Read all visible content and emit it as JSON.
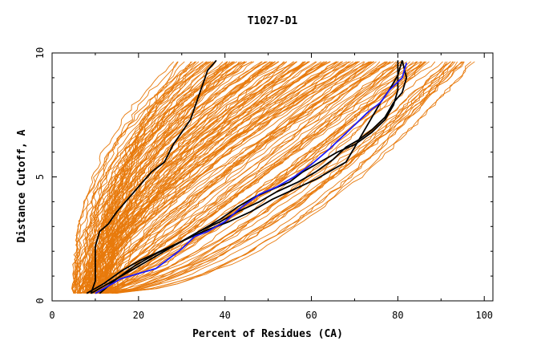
{
  "chart_data": {
    "type": "line",
    "title": "T1027-D1",
    "xlabel": "Percent of Residues (CA)",
    "ylabel": "Distance Cutoff, A",
    "xlim": [
      0,
      102
    ],
    "ylim": [
      0,
      10
    ],
    "x_ticks": [
      "0",
      "20",
      "40",
      "60",
      "80",
      "100"
    ],
    "y_ticks": [
      "0",
      "5",
      "10"
    ],
    "grid": false,
    "legend": "none",
    "colors": {
      "bundle": "#e87a0c",
      "highlight_black": "#000000",
      "highlight_blue": "#1a1aff"
    },
    "bundle_note": "about 160 orange model curves spanning x from 5 to 98 percent",
    "series": [
      {
        "color": "#000000",
        "points": [
          [
            9,
            0.3
          ],
          [
            10,
            0.8
          ],
          [
            10,
            1.5
          ],
          [
            10,
            2.2
          ],
          [
            11,
            2.8
          ],
          [
            13,
            3.1
          ],
          [
            15,
            3.6
          ],
          [
            17,
            4.0
          ],
          [
            19,
            4.4
          ],
          [
            21,
            4.8
          ],
          [
            23,
            5.2
          ],
          [
            26,
            5.6
          ],
          [
            28,
            6.3
          ],
          [
            30,
            6.8
          ],
          [
            32,
            7.3
          ],
          [
            33,
            7.8
          ],
          [
            34,
            8.3
          ],
          [
            35,
            8.8
          ],
          [
            36,
            9.3
          ],
          [
            38,
            9.7
          ]
        ]
      },
      {
        "color": "#000000",
        "points": [
          [
            8,
            0.3
          ],
          [
            12,
            0.7
          ],
          [
            16,
            1.2
          ],
          [
            20,
            1.6
          ],
          [
            25,
            2.0
          ],
          [
            30,
            2.4
          ],
          [
            35,
            2.8
          ],
          [
            41,
            3.2
          ],
          [
            46,
            3.6
          ],
          [
            51,
            4.1
          ],
          [
            56,
            4.5
          ],
          [
            61,
            4.9
          ],
          [
            65,
            5.3
          ],
          [
            68,
            5.6
          ],
          [
            70,
            6.2
          ],
          [
            72,
            6.8
          ],
          [
            74,
            7.4
          ],
          [
            76,
            8.0
          ],
          [
            78,
            8.5
          ],
          [
            80,
            9.1
          ],
          [
            81,
            9.7
          ]
        ]
      },
      {
        "color": "#000000",
        "points": [
          [
            9,
            0.3
          ],
          [
            14,
            0.8
          ],
          [
            19,
            1.3
          ],
          [
            24,
            1.8
          ],
          [
            29,
            2.3
          ],
          [
            34,
            2.8
          ],
          [
            39,
            3.2
          ],
          [
            43,
            3.6
          ],
          [
            48,
            4.0
          ],
          [
            52,
            4.4
          ],
          [
            57,
            4.8
          ],
          [
            61,
            5.2
          ],
          [
            65,
            5.7
          ],
          [
            68,
            6.2
          ],
          [
            71,
            6.5
          ],
          [
            74,
            6.9
          ],
          [
            77,
            7.4
          ],
          [
            79,
            8.0
          ],
          [
            81,
            8.4
          ],
          [
            82,
            9.0
          ],
          [
            81,
            9.7
          ]
        ]
      },
      {
        "color": "#000000",
        "points": [
          [
            11,
            0.3
          ],
          [
            15,
            0.9
          ],
          [
            19,
            1.4
          ],
          [
            24,
            1.9
          ],
          [
            29,
            2.3
          ],
          [
            34,
            2.8
          ],
          [
            39,
            3.3
          ],
          [
            43,
            3.8
          ],
          [
            47,
            4.2
          ],
          [
            51,
            4.5
          ],
          [
            55,
            4.8
          ],
          [
            58,
            5.2
          ],
          [
            62,
            5.6
          ],
          [
            66,
            6.0
          ],
          [
            70,
            6.3
          ],
          [
            74,
            6.8
          ],
          [
            77,
            7.3
          ],
          [
            79,
            7.9
          ],
          [
            80,
            8.5
          ],
          [
            80,
            9.1
          ],
          [
            80,
            9.7
          ]
        ]
      },
      {
        "color": "#1a1aff",
        "points": [
          [
            10,
            0.3
          ],
          [
            13,
            0.6
          ],
          [
            16,
            0.9
          ],
          [
            20,
            1.1
          ],
          [
            24,
            1.3
          ],
          [
            27,
            1.7
          ],
          [
            30,
            2.1
          ],
          [
            33,
            2.6
          ],
          [
            36,
            2.8
          ],
          [
            40,
            3.2
          ],
          [
            44,
            3.8
          ],
          [
            48,
            4.3
          ],
          [
            52,
            4.6
          ],
          [
            56,
            5.0
          ],
          [
            60,
            5.5
          ],
          [
            64,
            6.1
          ],
          [
            67,
            6.6
          ],
          [
            70,
            7.1
          ],
          [
            73,
            7.6
          ],
          [
            76,
            8.0
          ],
          [
            78,
            8.5
          ],
          [
            81,
            9.0
          ],
          [
            82,
            9.6
          ]
        ]
      }
    ]
  }
}
